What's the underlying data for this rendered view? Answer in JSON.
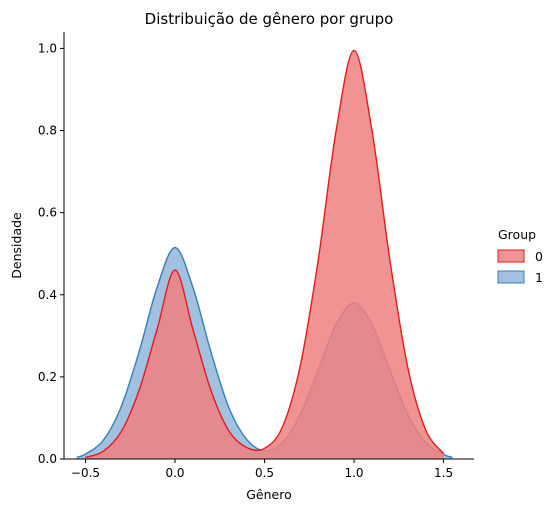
{
  "chart_data": {
    "type": "area",
    "title": "Distribuição de gênero por grupo",
    "xlabel": "Gênero",
    "ylabel": "Densidade",
    "xlim": [
      -0.62,
      1.67
    ],
    "ylim": [
      0,
      1.04
    ],
    "xticks": [
      -0.5,
      0.0,
      0.5,
      1.0,
      1.5
    ],
    "xtick_labels": [
      "−0.5",
      "0.0",
      "0.5",
      "1.0",
      "1.5"
    ],
    "yticks": [
      0.0,
      0.2,
      0.4,
      0.6,
      0.8,
      1.0
    ],
    "ytick_labels": [
      "0.0",
      "0.2",
      "0.4",
      "0.6",
      "0.8",
      "1.0"
    ],
    "grid": false,
    "legend": {
      "title": "Group",
      "placement": "right"
    },
    "series": [
      {
        "name": "0",
        "color": "#e41a1c",
        "fill": "#f08080",
        "x": [
          -0.5,
          -0.4,
          -0.3,
          -0.2,
          -0.1,
          0.0,
          0.1,
          0.2,
          0.3,
          0.4,
          0.5,
          0.6,
          0.7,
          0.8,
          0.9,
          1.0,
          1.1,
          1.2,
          1.3,
          1.4,
          1.5
        ],
        "y": [
          0.004,
          0.019,
          0.067,
          0.168,
          0.316,
          0.46,
          0.316,
          0.168,
          0.069,
          0.028,
          0.026,
          0.078,
          0.228,
          0.485,
          0.8,
          0.995,
          0.8,
          0.485,
          0.223,
          0.071,
          0.013
        ]
      },
      {
        "name": "1",
        "color": "#377eb8",
        "fill": "#8fb6db",
        "x": [
          -0.55,
          -0.5,
          -0.4,
          -0.3,
          -0.2,
          -0.1,
          0.0,
          0.1,
          0.2,
          0.3,
          0.4,
          0.5,
          0.6,
          0.7,
          0.8,
          0.9,
          1.0,
          1.1,
          1.2,
          1.3,
          1.4,
          1.5,
          1.55
        ],
        "y": [
          0.004,
          0.012,
          0.046,
          0.128,
          0.262,
          0.418,
          0.515,
          0.418,
          0.262,
          0.126,
          0.048,
          0.02,
          0.04,
          0.109,
          0.217,
          0.328,
          0.38,
          0.328,
          0.217,
          0.109,
          0.04,
          0.011,
          0.004
        ]
      }
    ]
  }
}
